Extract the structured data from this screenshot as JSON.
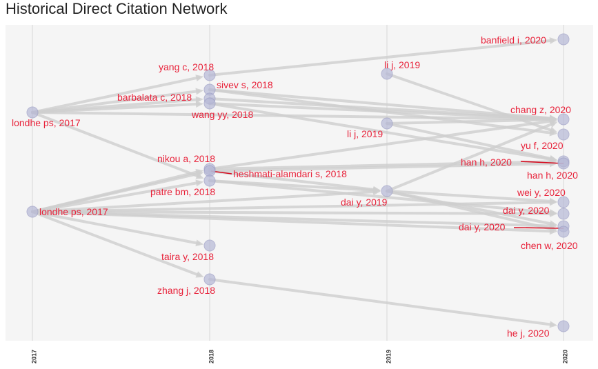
{
  "title": "Historical Direct Citation Network",
  "chart_data": {
    "type": "network",
    "x_ticks": [
      "2017",
      "2018",
      "2019",
      "2020"
    ],
    "colors": {
      "background": "#f5f5f5",
      "grid": "#e6e6e6",
      "edge": "#cfcfcf",
      "node_fill": "#b6b8d6",
      "node_stroke": "#9a9cc4",
      "label": "#e8223a",
      "highlight": "#d60b1f"
    },
    "nodes": [
      {
        "id": "londhe1",
        "label": "londhe ps, 2017",
        "year": "2017",
        "y": 163
      },
      {
        "id": "londhe2",
        "label": "londhe ps, 2017",
        "year": "2017",
        "y": 307
      },
      {
        "id": "yangc",
        "label": "yang c, 2018",
        "year": "2018",
        "y": 109
      },
      {
        "id": "sivev",
        "label": "sivev s, 2018",
        "year": "2018",
        "y": 130
      },
      {
        "id": "barbalata",
        "label": "barbalata c, 2018",
        "year": "2018",
        "y": 143
      },
      {
        "id": "wangyy",
        "label": "wang yy, 2018",
        "year": "2018",
        "y": 150
      },
      {
        "id": "nikou",
        "label": "nikou a, 2018",
        "year": "2018",
        "y": 245
      },
      {
        "id": "heshmati",
        "label": "heshmati-alamdari s, 2018",
        "year": "2018",
        "y": 248
      },
      {
        "id": "patre",
        "label": "patre bm, 2018",
        "year": "2018",
        "y": 262
      },
      {
        "id": "tairay",
        "label": "taira y, 2018",
        "year": "2018",
        "y": 356
      },
      {
        "id": "zhangj",
        "label": "zhang j, 2018",
        "year": "2018",
        "y": 405
      },
      {
        "id": "lij1",
        "label": "li j, 2019",
        "year": "2019",
        "y": 107
      },
      {
        "id": "lij2",
        "label": "li j, 2019",
        "year": "2019",
        "y": 179
      },
      {
        "id": "daiy19",
        "label": "dai y, 2019",
        "year": "2019",
        "y": 277
      },
      {
        "id": "banfield",
        "label": "banfield i, 2020",
        "year": "2020",
        "y": 57
      },
      {
        "id": "changz",
        "label": "chang z, 2020",
        "year": "2020",
        "y": 173
      },
      {
        "id": "yuf",
        "label": "yu f, 2020",
        "year": "2020",
        "y": 195
      },
      {
        "id": "hanh1",
        "label": "han h, 2020",
        "year": "2020",
        "y": 234
      },
      {
        "id": "hanh2",
        "label": "han h, 2020",
        "year": "2020",
        "y": 237
      },
      {
        "id": "weiy",
        "label": "wei y, 2020",
        "year": "2020",
        "y": 293
      },
      {
        "id": "daiy20a",
        "label": "dai y, 2020",
        "year": "2020",
        "y": 310
      },
      {
        "id": "daiy20b",
        "label": "dai y, 2020",
        "year": "2020",
        "y": 328
      },
      {
        "id": "chenw",
        "label": "chen w, 2020",
        "year": "2020",
        "y": 336
      },
      {
        "id": "hej",
        "label": "he j, 2020",
        "year": "2020",
        "y": 473
      }
    ],
    "edges": [
      [
        "londhe1",
        "yangc"
      ],
      [
        "londhe1",
        "sivev"
      ],
      [
        "londhe1",
        "barbalata"
      ],
      [
        "londhe1",
        "wangyy"
      ],
      [
        "londhe1",
        "patre"
      ],
      [
        "londhe1",
        "changz"
      ],
      [
        "londhe2",
        "nikou"
      ],
      [
        "londhe2",
        "heshmati"
      ],
      [
        "londhe2",
        "patre"
      ],
      [
        "londhe2",
        "tairay"
      ],
      [
        "londhe2",
        "zhangj"
      ],
      [
        "londhe2",
        "daiy19"
      ],
      [
        "londhe2",
        "weiy"
      ],
      [
        "londhe2",
        "daiy20a"
      ],
      [
        "londhe2",
        "daiy20b"
      ],
      [
        "londhe2",
        "chenw"
      ],
      [
        "yangc",
        "banfield"
      ],
      [
        "sivev",
        "changz"
      ],
      [
        "sivev",
        "yuf"
      ],
      [
        "barbalata",
        "changz"
      ],
      [
        "wangyy",
        "changz"
      ],
      [
        "wangyy",
        "hanh1"
      ],
      [
        "nikou",
        "changz"
      ],
      [
        "nikou",
        "hanh1"
      ],
      [
        "heshmati",
        "hanh2"
      ],
      [
        "heshmati",
        "daiy19"
      ],
      [
        "patre",
        "daiy19"
      ],
      [
        "patre",
        "daiy20a"
      ],
      [
        "zhangj",
        "hej"
      ],
      [
        "lij1",
        "yuf"
      ],
      [
        "lij2",
        "changz"
      ],
      [
        "lij2",
        "hanh1"
      ],
      [
        "daiy19",
        "chenw"
      ],
      [
        "daiy19",
        "daiy20b"
      ],
      [
        "daiy19",
        "weiy"
      ],
      [
        "daiy19",
        "changz"
      ]
    ],
    "highlight_edges": [
      [
        "heshmati",
        "hanh2"
      ],
      [
        "hanh1",
        "hanh2"
      ],
      [
        "daiy20b",
        "chenw"
      ]
    ]
  }
}
